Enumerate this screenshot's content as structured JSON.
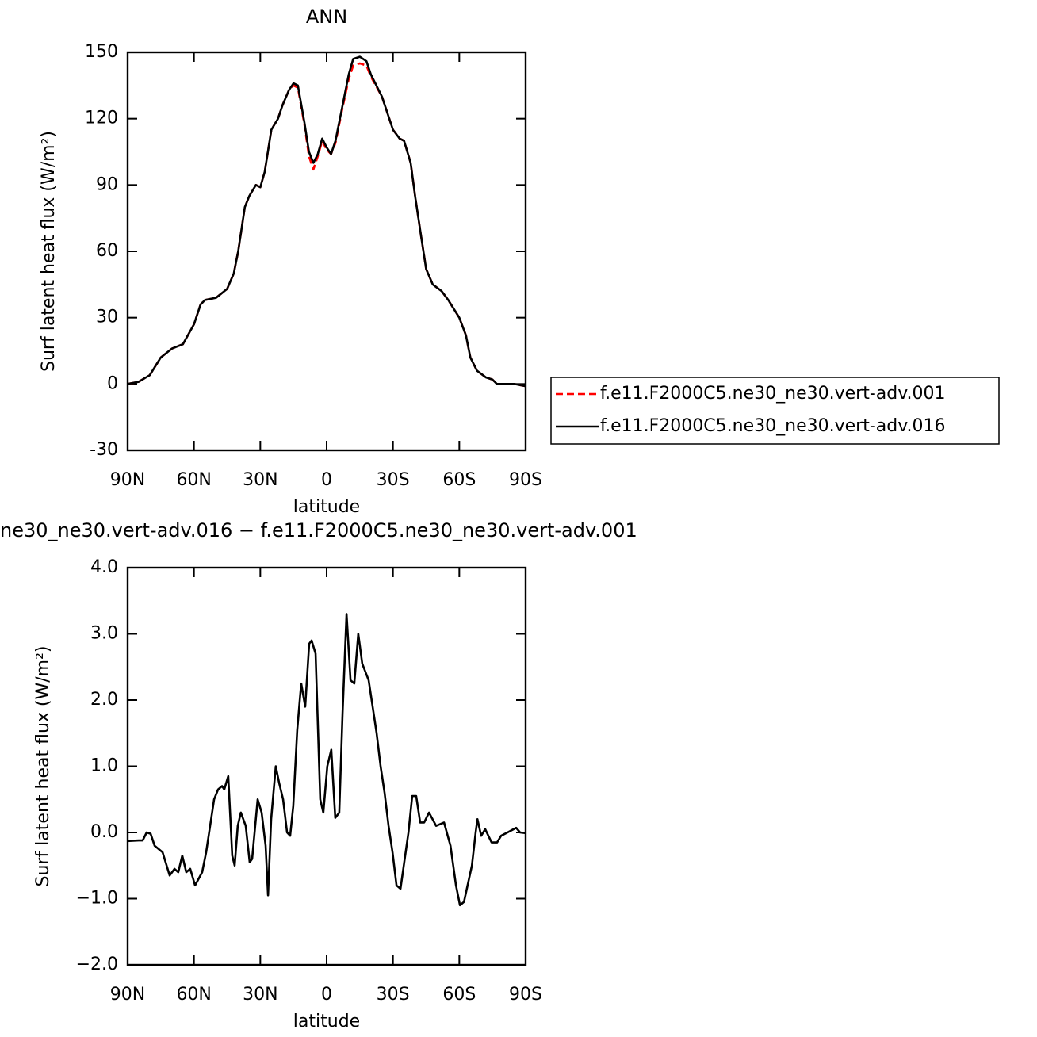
{
  "chart_data": [
    {
      "type": "line",
      "title": "ANN",
      "x_label": "latitude",
      "y_label": "Surf latent heat flux (W/m²)",
      "x": [
        90,
        85,
        80,
        75,
        70,
        65,
        60,
        57,
        55,
        50,
        45,
        42,
        40,
        37,
        35,
        32,
        30,
        28,
        25,
        22,
        20,
        17,
        15,
        13,
        10,
        8,
        6,
        4,
        2,
        0,
        -2,
        -4,
        -7,
        -10,
        -12,
        -15,
        -18,
        -20,
        -25,
        -30,
        -33,
        -35,
        -38,
        -40,
        -43,
        -45,
        -48,
        -52,
        -55,
        -60,
        -63,
        -65,
        -68,
        -72,
        -75,
        -77,
        -80,
        -85,
        -90
      ],
      "series": [
        {
          "name": "f.e11.F2000C5.ne30_ne30.vert-adv.001",
          "color": "#ff0000",
          "line_style": "dashed",
          "values": [
            0,
            1,
            4,
            12,
            16,
            18,
            27,
            36,
            38,
            39,
            43,
            50,
            60,
            80,
            85,
            90,
            89,
            96,
            115,
            120,
            126,
            133,
            135,
            134,
            117,
            103,
            97,
            103,
            110,
            106,
            104,
            109,
            124,
            138,
            144,
            145,
            144,
            139,
            130,
            115,
            111,
            110,
            100,
            85,
            65,
            52,
            45,
            42,
            38,
            30,
            22,
            12,
            6,
            3,
            2,
            0,
            0,
            0,
            -1
          ]
        },
        {
          "name": "f.e11.F2000C5.ne30_ne30.vert-adv.016",
          "color": "#000000",
          "line_style": "solid",
          "values": [
            0,
            1,
            4,
            12,
            16,
            18,
            27,
            36,
            38,
            39,
            43,
            50,
            60,
            80,
            85,
            90,
            89,
            96,
            115,
            120,
            126,
            133,
            136,
            135,
            118,
            105,
            100,
            104,
            111,
            107,
            104,
            110,
            125,
            140,
            147,
            148,
            146,
            140,
            130,
            115,
            111,
            110,
            100,
            85,
            65,
            52,
            45,
            42,
            38,
            30,
            22,
            12,
            6,
            3,
            2,
            0,
            0,
            0,
            -1
          ]
        }
      ],
      "xlim": [
        90,
        -90
      ],
      "xticks": [
        {
          "value": 90,
          "label": "90N"
        },
        {
          "value": 60,
          "label": "60N"
        },
        {
          "value": 30,
          "label": "30N"
        },
        0,
        {
          "value": -30,
          "label": "30S"
        },
        {
          "value": -60,
          "label": "60S"
        },
        {
          "value": -90,
          "label": "90S"
        }
      ],
      "ylim": [
        -30,
        150
      ],
      "yticks": [
        -30,
        0,
        30,
        60,
        90,
        120,
        150
      ],
      "legend": "right"
    },
    {
      "type": "line",
      "title": "ne30_ne30.vert-adv.016 − f.e11.F2000C5.ne30_ne30.vert-adv.001",
      "x_label": "latitude",
      "y_label": "Surf latent heat flux (W/m²)",
      "x": [
        90,
        85,
        83.2,
        81.4,
        79.6,
        77.8,
        74.2,
        71,
        68.8,
        67.1,
        65.3,
        63.5,
        61.7,
        59.5,
        56.3,
        54.5,
        52.7,
        50.9,
        49.1,
        47.3,
        46.3,
        44.5,
        42.7,
        41.6,
        40.2,
        38.8,
        36.6,
        34.8,
        33.7,
        31.2,
        29.4,
        27.6,
        26.5,
        25.1,
        23,
        21.5,
        19.7,
        17.9,
        16.5,
        15.1,
        13.3,
        11.5,
        9.7,
        7.9,
        6.8,
        5,
        2.9,
        1.5,
        -0.3,
        -2.1,
        -3.9,
        -5.7,
        -7.2,
        -9,
        -10.8,
        -12.5,
        -14.3,
        -16.1,
        -19,
        -22.6,
        -24.4,
        -26.2,
        -28,
        -29.8,
        -31.6,
        -33.4,
        -37,
        -38.7,
        -40.5,
        -42.3,
        -44.1,
        -46.3,
        -49.5,
        -53.1,
        -56,
        -58.5,
        -60.3,
        -62.1,
        -65.7,
        -67.4,
        -68.2,
        -69.9,
        -71.7,
        -74.6,
        -77.1,
        -78.9,
        -81.8,
        -84.6,
        -85.7,
        -87.5,
        -90
      ],
      "series": [
        {
          "color": "#000000",
          "line_style": "solid",
          "values": [
            -0.13,
            -0.12,
            -0.12,
            0,
            -0.02,
            -0.2,
            -0.3,
            -0.65,
            -0.55,
            -0.6,
            -0.35,
            -0.6,
            -0.55,
            -0.8,
            -0.6,
            -0.3,
            0.1,
            0.5,
            0.65,
            0.7,
            0.65,
            0.85,
            -0.35,
            -0.5,
            0.1,
            0.3,
            0.1,
            -0.45,
            -0.4,
            0.5,
            0.3,
            -0.2,
            -0.95,
            0.2,
            1,
            0.75,
            0.5,
            0,
            -0.05,
            0.4,
            1.55,
            2.25,
            1.9,
            2.85,
            2.9,
            2.7,
            0.5,
            0.3,
            1,
            1.25,
            0.22,
            0.3,
            1.8,
            3.3,
            2.3,
            2.25,
            3,
            2.55,
            2.3,
            1.5,
            1,
            0.6,
            0.1,
            -0.3,
            -0.8,
            -0.85,
            0,
            0.55,
            0.55,
            0.15,
            0.15,
            0.3,
            0.1,
            0.15,
            -0.2,
            -0.8,
            -1.1,
            -1.05,
            -0.5,
            0,
            0.2,
            -0.05,
            0.05,
            -0.15,
            -0.15,
            -0.05,
            0,
            0.05,
            0.07,
            0,
            -0.01
          ]
        }
      ],
      "xlim": [
        90,
        -90
      ],
      "xticks": [
        {
          "value": 90,
          "label": "90N"
        },
        {
          "value": 60,
          "label": "60N"
        },
        {
          "value": 30,
          "label": "30N"
        },
        0,
        {
          "value": -30,
          "label": "30S"
        },
        {
          "value": -60,
          "label": "60S"
        },
        {
          "value": -90,
          "label": "90S"
        }
      ],
      "ylim": [
        -2,
        4
      ],
      "yticks": [
        {
          "value": -2,
          "label": "−2.0"
        },
        {
          "value": -1,
          "label": "−1.0"
        },
        {
          "value": 0,
          "label": "0.0"
        },
        {
          "value": 1,
          "label": "1.0"
        },
        {
          "value": 2,
          "label": "2.0"
        },
        {
          "value": 3,
          "label": "3.0"
        },
        {
          "value": 4,
          "label": "4.0"
        }
      ]
    }
  ]
}
